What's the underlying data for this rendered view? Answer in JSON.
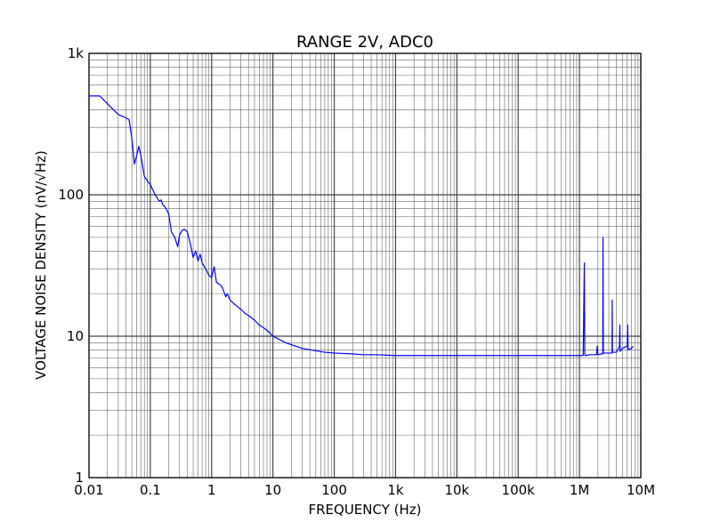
{
  "chart_data": {
    "type": "line",
    "title": "RANGE 2V, ADC0",
    "xlabel": "FREQUENCY (Hz)",
    "ylabel": "VOLTAGE NOISE DENSITY (nV/√Hz)",
    "x_scale": "log",
    "y_scale": "log",
    "xlim": [
      0.01,
      10000000
    ],
    "ylim": [
      1,
      1000
    ],
    "grid": true,
    "x_ticks": [
      {
        "value": 0.01,
        "label": "0.01"
      },
      {
        "value": 0.1,
        "label": "0.1"
      },
      {
        "value": 1,
        "label": "1"
      },
      {
        "value": 10,
        "label": "10"
      },
      {
        "value": 100,
        "label": "100"
      },
      {
        "value": 1000,
        "label": "1k"
      },
      {
        "value": 10000,
        "label": "10k"
      },
      {
        "value": 100000,
        "label": "100k"
      },
      {
        "value": 1000000,
        "label": "1M"
      },
      {
        "value": 10000000,
        "label": "10M"
      }
    ],
    "y_ticks": [
      {
        "value": 1,
        "label": "1"
      },
      {
        "value": 10,
        "label": "10"
      },
      {
        "value": 100,
        "label": "100"
      },
      {
        "value": 1000,
        "label": "1k"
      }
    ],
    "series": [
      {
        "color": "#0000ff",
        "x": [
          0.01,
          0.015,
          0.02,
          0.025,
          0.03,
          0.04,
          0.045,
          0.05,
          0.055,
          0.06,
          0.065,
          0.07,
          0.08,
          0.09,
          0.1,
          0.12,
          0.14,
          0.15,
          0.16,
          0.17,
          0.18,
          0.2,
          0.22,
          0.25,
          0.28,
          0.3,
          0.33,
          0.36,
          0.4,
          0.45,
          0.5,
          0.55,
          0.6,
          0.65,
          0.7,
          0.8,
          0.9,
          1.0,
          1.1,
          1.2,
          1.4,
          1.5,
          1.7,
          1.8,
          2.0,
          2.3,
          2.5,
          3.0,
          3.5,
          4.0,
          5.0,
          6.0,
          7.0,
          8.0,
          9.0,
          10,
          11,
          12,
          14,
          16,
          20,
          30,
          50,
          70,
          100,
          200,
          300,
          500,
          1000,
          2000,
          5000,
          10000,
          20000,
          50000,
          100000,
          200000,
          500000,
          1000000,
          1150000,
          1200000,
          1220000,
          1250000,
          1500000,
          1900000,
          1950000,
          2000000,
          2300000,
          2400000,
          2420000,
          2450000,
          3000000,
          3400000,
          3420000,
          3450000,
          4000000,
          4500000,
          4550000,
          4600000,
          5000000,
          6000000,
          6100000,
          6200000,
          7000000,
          7500000
        ],
        "y": [
          500,
          500,
          440,
          400,
          370,
          350,
          340,
          250,
          165,
          190,
          220,
          190,
          135,
          125,
          118,
          100,
          90,
          92,
          85,
          83,
          80,
          73,
          55,
          50,
          43,
          52,
          56,
          57,
          55,
          45,
          36,
          40,
          34,
          38,
          33,
          30,
          27,
          26,
          31,
          24,
          23,
          22,
          19,
          20,
          18,
          17,
          16.5,
          15.5,
          14.5,
          14,
          13,
          12,
          11.5,
          11,
          10.5,
          10,
          9.8,
          9.6,
          9.3,
          9.0,
          8.7,
          8.2,
          7.9,
          7.7,
          7.6,
          7.5,
          7.4,
          7.4,
          7.3,
          7.3,
          7.3,
          7.3,
          7.3,
          7.3,
          7.3,
          7.3,
          7.3,
          7.3,
          7.3,
          33,
          7.4,
          7.3,
          7.4,
          7.4,
          8.5,
          7.4,
          7.5,
          7.5,
          50,
          7.6,
          7.6,
          7.6,
          18,
          7.7,
          7.7,
          8.5,
          12,
          7.8,
          8.2,
          8.5,
          12,
          8.0,
          8.2,
          8.5
        ]
      }
    ]
  }
}
